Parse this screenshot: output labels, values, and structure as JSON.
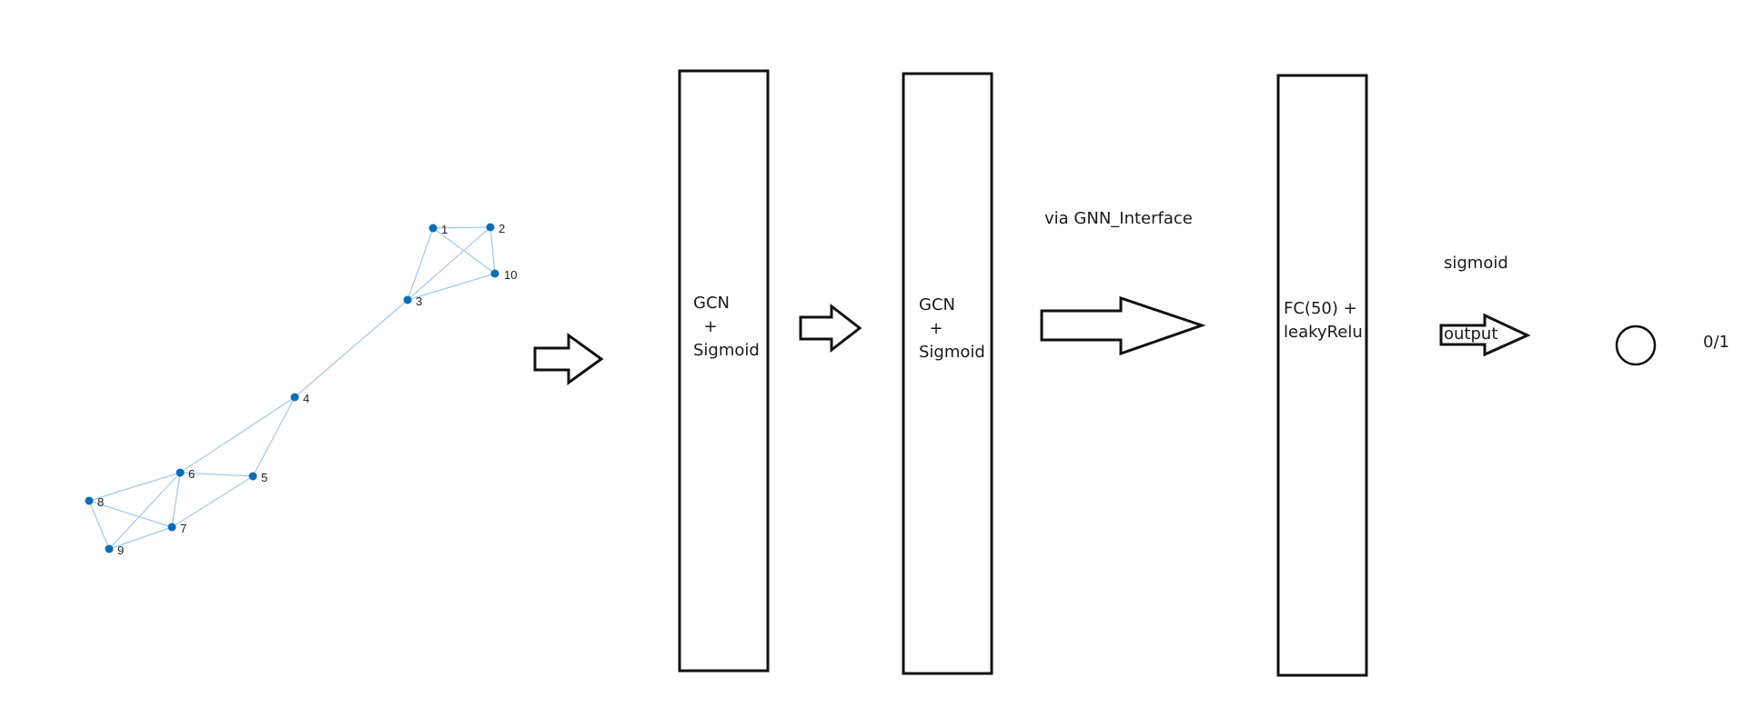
{
  "graph": {
    "node_color": "#0d6db3",
    "edge_color": "#9ecae8",
    "nodes": [
      {
        "id": "1",
        "label": "1"
      },
      {
        "id": "2",
        "label": "2"
      },
      {
        "id": "3",
        "label": "3"
      },
      {
        "id": "4",
        "label": "4"
      },
      {
        "id": "5",
        "label": "5"
      },
      {
        "id": "6",
        "label": "6"
      },
      {
        "id": "7",
        "label": "7"
      },
      {
        "id": "8",
        "label": "8"
      },
      {
        "id": "9",
        "label": "9"
      },
      {
        "id": "10",
        "label": "10"
      }
    ],
    "edges": [
      [
        "1",
        "2"
      ],
      [
        "1",
        "3"
      ],
      [
        "1",
        "10"
      ],
      [
        "2",
        "3"
      ],
      [
        "2",
        "10"
      ],
      [
        "3",
        "10"
      ],
      [
        "3",
        "4"
      ],
      [
        "4",
        "5"
      ],
      [
        "4",
        "6"
      ],
      [
        "5",
        "6"
      ],
      [
        "5",
        "7"
      ],
      [
        "6",
        "7"
      ],
      [
        "6",
        "8"
      ],
      [
        "6",
        "9"
      ],
      [
        "7",
        "8"
      ],
      [
        "7",
        "9"
      ],
      [
        "8",
        "9"
      ]
    ]
  },
  "blocks": {
    "gcn1": {
      "line1": "GCN",
      "line2": "  +",
      "line3": "Sigmoid"
    },
    "gcn2": {
      "line1": "GCN",
      "line2": "  +",
      "line3": "Sigmoid"
    },
    "fc": {
      "line1": "FC(50) +",
      "line2": "leakyRelu"
    }
  },
  "labels": {
    "via": "via GNN_Interface",
    "sigmoid_line1": "sigmoid",
    "sigmoid_line2": "output",
    "output_value": "0/1"
  }
}
